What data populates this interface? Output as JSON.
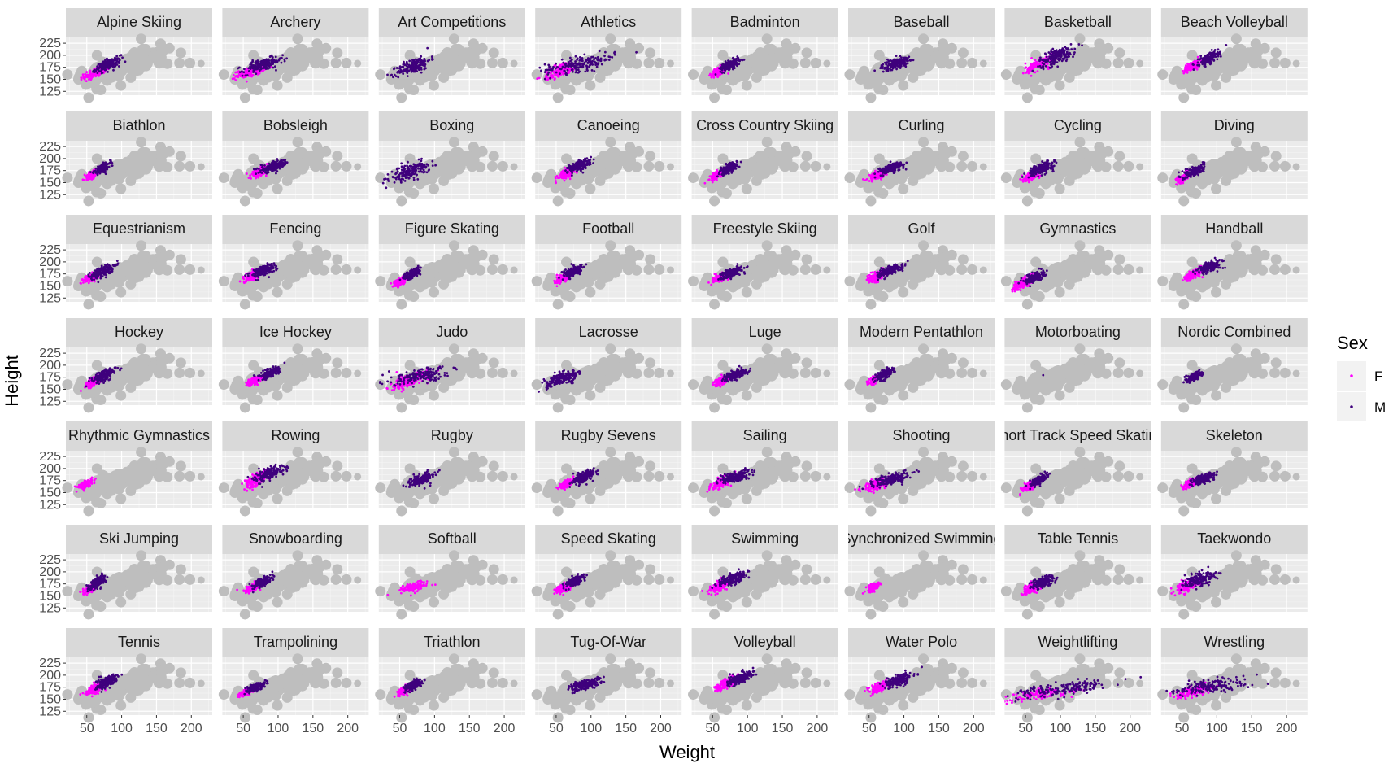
{
  "chart_data": {
    "type": "scatter",
    "facet_by": "Sport",
    "facet_columns": 8,
    "xlabel": "Weight",
    "ylabel": "Height",
    "x_ticks": [
      50,
      100,
      150,
      200
    ],
    "y_ticks": [
      125,
      150,
      175,
      200,
      225
    ],
    "xlim": [
      20,
      230
    ],
    "ylim": [
      117,
      237
    ],
    "grid": true,
    "background_layer": "all athletes shown in grey in every panel",
    "legend": {
      "title": "Sex",
      "position": "right",
      "entries": [
        {
          "label": "F",
          "color": "#ff00ff"
        },
        {
          "label": "M",
          "color": "#3f007d"
        }
      ]
    },
    "colors": {
      "F": "#ff00ff",
      "M": "#3f007d",
      "background_points": "#bebebe",
      "panel_background": "#ebebeb",
      "strip_background": "#d9d9d9"
    },
    "panels": [
      {
        "title": "Alpine Skiing",
        "F": [
          62,
          163,
          8,
          6
        ],
        "M": [
          80,
          180,
          9,
          7
        ]
      },
      {
        "title": "Archery",
        "F": [
          60,
          165,
          10,
          6
        ],
        "M": [
          78,
          180,
          14,
          8
        ]
      },
      {
        "title": "Art Competitions",
        "F": [],
        "M": [
          70,
          178,
          12,
          10
        ]
      },
      {
        "title": "Athletics",
        "F": [
          55,
          168,
          12,
          9
        ],
        "M": [
          85,
          182,
          25,
          10
        ]
      },
      {
        "title": "Badminton",
        "F": [
          60,
          167,
          6,
          6
        ],
        "M": [
          75,
          180,
          7,
          6
        ]
      },
      {
        "title": "Baseball",
        "F": [],
        "M": [
          88,
          183,
          10,
          7
        ]
      },
      {
        "title": "Basketball",
        "F": [
          70,
          182,
          10,
          9
        ],
        "M": [
          95,
          198,
          13,
          10
        ]
      },
      {
        "title": "Beach Volleyball",
        "F": [
          65,
          178,
          6,
          6
        ],
        "M": [
          88,
          193,
          7,
          7
        ]
      },
      {
        "title": "Biathlon",
        "F": [
          57,
          166,
          5,
          5
        ],
        "M": [
          72,
          179,
          6,
          6
        ]
      },
      {
        "title": "Bobsleigh",
        "F": [
          73,
          172,
          6,
          5
        ],
        "M": [
          95,
          184,
          10,
          6
        ]
      },
      {
        "title": "Boxing",
        "F": [],
        "M": [
          65,
          173,
          14,
          10
        ]
      },
      {
        "title": "Canoeing",
        "F": [
          64,
          170,
          6,
          6
        ],
        "M": [
          83,
          185,
          8,
          7
        ]
      },
      {
        "title": "Cross Country Skiing",
        "F": [
          57,
          166,
          5,
          5
        ],
        "M": [
          73,
          179,
          6,
          6
        ]
      },
      {
        "title": "Curling",
        "F": [
          63,
          166,
          7,
          5
        ],
        "M": [
          82,
          180,
          9,
          6
        ]
      },
      {
        "title": "Cycling",
        "F": [
          60,
          167,
          6,
          6
        ],
        "M": [
          72,
          179,
          9,
          7
        ]
      },
      {
        "title": "Diving",
        "F": [
          52,
          160,
          5,
          5
        ],
        "M": [
          68,
          174,
          7,
          6
        ]
      },
      {
        "title": "Equestrianism",
        "F": [
          58,
          168,
          6,
          6
        ],
        "M": [
          72,
          180,
          8,
          7
        ]
      },
      {
        "title": "Fencing",
        "F": [
          62,
          170,
          6,
          6
        ],
        "M": [
          78,
          182,
          9,
          7
        ]
      },
      {
        "title": "Figure Skating",
        "F": [
          50,
          159,
          5,
          5
        ],
        "M": [
          68,
          175,
          6,
          6
        ]
      },
      {
        "title": "Football",
        "F": [
          60,
          167,
          6,
          6
        ],
        "M": [
          75,
          180,
          7,
          6
        ]
      },
      {
        "title": "Freestyle Skiing",
        "F": [
          60,
          166,
          6,
          5
        ],
        "M": [
          77,
          178,
          7,
          6
        ]
      },
      {
        "title": "Golf",
        "F": [
          60,
          168,
          6,
          6
        ],
        "M": [
          80,
          182,
          9,
          6
        ]
      },
      {
        "title": "Gymnastics",
        "F": [
          45,
          155,
          6,
          7
        ],
        "M": [
          63,
          168,
          7,
          6
        ]
      },
      {
        "title": "Handball",
        "F": [
          68,
          175,
          6,
          6
        ],
        "M": [
          90,
          190,
          9,
          7
        ]
      },
      {
        "title": "Hockey",
        "F": [
          60,
          166,
          6,
          6
        ],
        "M": [
          75,
          179,
          8,
          7
        ]
      },
      {
        "title": "Ice Hockey",
        "F": [
          66,
          168,
          6,
          5
        ],
        "M": [
          87,
          183,
          8,
          6
        ]
      },
      {
        "title": "Judo",
        "F": [
          62,
          166,
          14,
          9
        ],
        "M": [
          82,
          178,
          22,
          9
        ]
      },
      {
        "title": "Lacrosse",
        "F": [],
        "M": [
          60,
          172,
          12,
          8
        ]
      },
      {
        "title": "Luge",
        "F": [
          63,
          168,
          6,
          5
        ],
        "M": [
          82,
          180,
          8,
          6
        ]
      },
      {
        "title": "Modern Pentathlon",
        "F": [
          58,
          170,
          5,
          5
        ],
        "M": [
          72,
          181,
          6,
          6
        ]
      },
      {
        "title": "Motorboating",
        "F": [],
        "M": [
          72,
          180,
          2,
          2
        ]
      },
      {
        "title": "Nordic Combined",
        "F": [],
        "M": [
          68,
          177,
          5,
          5
        ]
      },
      {
        "title": "Rhythmic Gymnastics",
        "F": [
          48,
          167,
          5,
          5
        ],
        "M": []
      },
      {
        "title": "Rowing",
        "F": [
          68,
          176,
          8,
          8
        ],
        "M": [
          88,
          190,
          10,
          8
        ]
      },
      {
        "title": "Rugby",
        "F": [],
        "M": [
          82,
          178,
          9,
          7
        ]
      },
      {
        "title": "Rugby Sevens",
        "F": [
          64,
          168,
          5,
          5
        ],
        "M": [
          90,
          183,
          8,
          7
        ]
      },
      {
        "title": "Sailing",
        "F": [
          63,
          170,
          8,
          7
        ],
        "M": [
          82,
          183,
          11,
          7
        ]
      },
      {
        "title": "Shooting",
        "F": [
          62,
          166,
          11,
          7
        ],
        "M": [
          82,
          178,
          13,
          7
        ]
      },
      {
        "title": "Short Track Speed Skating",
        "F": [
          55,
          163,
          5,
          5
        ],
        "M": [
          68,
          175,
          6,
          6
        ]
      },
      {
        "title": "Skeleton",
        "F": [
          62,
          169,
          5,
          5
        ],
        "M": [
          82,
          180,
          8,
          6
        ]
      },
      {
        "title": "Ski Jumping",
        "F": [
          55,
          165,
          4,
          5
        ],
        "M": [
          65,
          178,
          6,
          7
        ]
      },
      {
        "title": "Snowboarding",
        "F": [
          62,
          166,
          6,
          5
        ],
        "M": [
          77,
          178,
          7,
          6
        ]
      },
      {
        "title": "Softball",
        "F": [
          70,
          168,
          10,
          6
        ],
        "M": []
      },
      {
        "title": "Speed Skating",
        "F": [
          62,
          167,
          6,
          6
        ],
        "M": [
          78,
          181,
          7,
          6
        ]
      },
      {
        "title": "Swimming",
        "F": [
          60,
          171,
          7,
          7
        ],
        "M": [
          78,
          185,
          10,
          8
        ]
      },
      {
        "title": "Synchronized Swimming",
        "F": [
          56,
          168,
          5,
          5
        ],
        "M": []
      },
      {
        "title": "Table Tennis",
        "F": [
          58,
          165,
          6,
          6
        ],
        "M": [
          75,
          178,
          8,
          7
        ]
      },
      {
        "title": "Taekwondo",
        "F": [
          60,
          172,
          9,
          8
        ],
        "M": [
          75,
          185,
          13,
          9
        ]
      },
      {
        "title": "Tennis",
        "F": [
          62,
          172,
          6,
          6
        ],
        "M": [
          78,
          185,
          8,
          7
        ]
      },
      {
        "title": "Trampolining",
        "F": [
          55,
          165,
          5,
          4
        ],
        "M": [
          68,
          175,
          6,
          5
        ]
      },
      {
        "title": "Triathlon",
        "F": [
          56,
          168,
          5,
          5
        ],
        "M": [
          70,
          180,
          6,
          6
        ]
      },
      {
        "title": "Tug-Of-War",
        "F": [],
        "M": [
          90,
          180,
          12,
          7
        ]
      },
      {
        "title": "Volleyball",
        "F": [
          70,
          182,
          8,
          7
        ],
        "M": [
          90,
          195,
          9,
          7
        ]
      },
      {
        "title": "Water Polo",
        "F": [
          65,
          175,
          7,
          6
        ],
        "M": [
          92,
          189,
          10,
          7
        ]
      },
      {
        "title": "Weightlifting",
        "F": [
          70,
          160,
          25,
          7
        ],
        "M": [
          95,
          170,
          35,
          9
        ]
      },
      {
        "title": "Wrestling",
        "F": [
          65,
          165,
          14,
          7
        ],
        "M": [
          92,
          178,
          28,
          9
        ]
      }
    ]
  }
}
